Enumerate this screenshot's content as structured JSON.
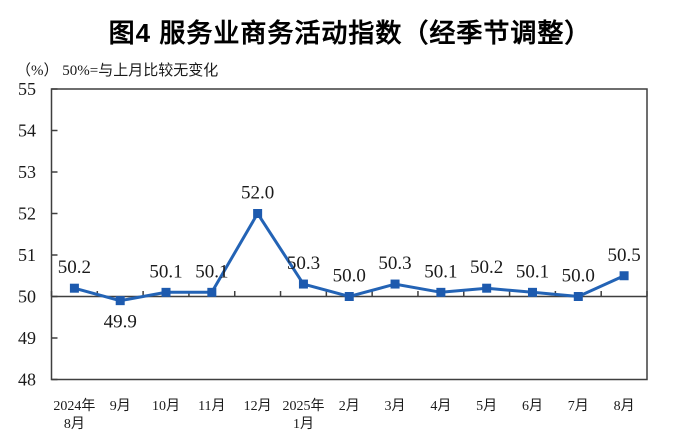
{
  "title": "图4 服务业商务活动指数（经季节调整）",
  "unit_note": "（%） 50%=与上月比较无变化",
  "chart_data": {
    "type": "line",
    "title": "图4 服务业商务活动指数（经季节调整）",
    "unit_note": "（%） 50%=与上月比较无变化",
    "categories": [
      [
        "2024年",
        "8月"
      ],
      [
        "9月"
      ],
      [
        "10月"
      ],
      [
        "11月"
      ],
      [
        "12月"
      ],
      [
        "2025年",
        "1月"
      ],
      [
        "2月"
      ],
      [
        "3月"
      ],
      [
        "4月"
      ],
      [
        "5月"
      ],
      [
        "6月"
      ],
      [
        "7月"
      ],
      [
        "8月"
      ]
    ],
    "values": [
      50.2,
      49.9,
      50.1,
      50.1,
      52.0,
      50.3,
      50.0,
      50.3,
      50.1,
      50.2,
      50.1,
      50.0,
      50.5
    ],
    "point_labels": [
      "50.2",
      "49.9",
      "50.1",
      "50.1",
      "52.0",
      "50.3",
      "50.0",
      "50.3",
      "50.1",
      "50.2",
      "50.1",
      "50.0",
      "50.5"
    ],
    "ylim": [
      48,
      55
    ],
    "ytick_step": 1,
    "ytick_labels": [
      "48",
      "49",
      "50",
      "51",
      "52",
      "53",
      "54",
      "55"
    ],
    "x_axis_cross_value": 50,
    "grid": false,
    "legend": "none",
    "line_color": "#2363B5",
    "marker_color": "#1D5AAE",
    "axis_color": "#3F3F3F",
    "text_color": "#1A1A1A"
  }
}
